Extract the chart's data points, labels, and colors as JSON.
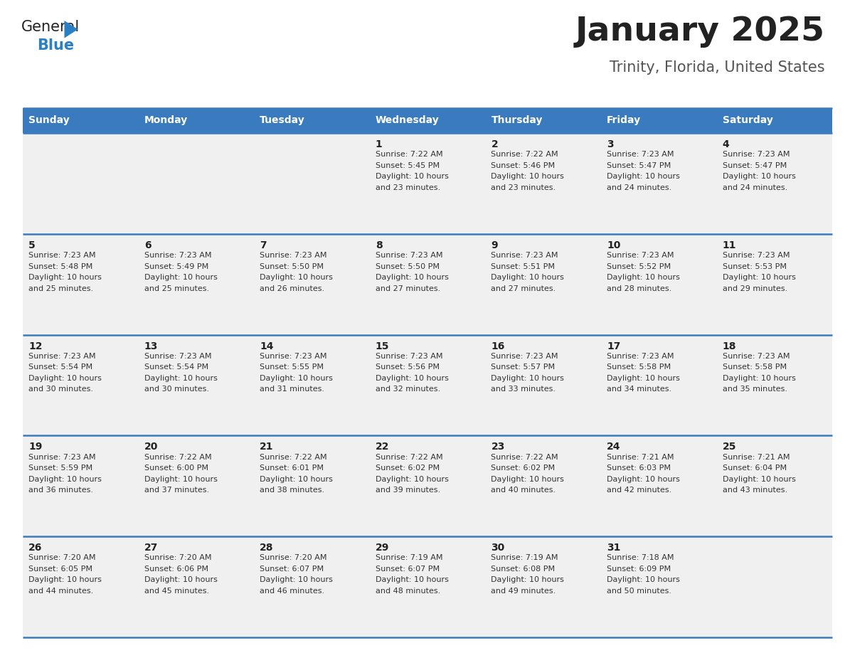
{
  "title": "January 2025",
  "subtitle": "Trinity, Florida, United States",
  "header_bg": "#3a7abf",
  "header_text_color": "#ffffff",
  "cell_bg": "#f0f0f0",
  "border_color": "#3a7abf",
  "day_headers": [
    "Sunday",
    "Monday",
    "Tuesday",
    "Wednesday",
    "Thursday",
    "Friday",
    "Saturday"
  ],
  "days": [
    {
      "day": 1,
      "col": 3,
      "row": 0,
      "sunrise": "7:22 AM",
      "sunset": "5:45 PM",
      "daylight": "10 hours and 23 minutes."
    },
    {
      "day": 2,
      "col": 4,
      "row": 0,
      "sunrise": "7:22 AM",
      "sunset": "5:46 PM",
      "daylight": "10 hours and 23 minutes."
    },
    {
      "day": 3,
      "col": 5,
      "row": 0,
      "sunrise": "7:23 AM",
      "sunset": "5:47 PM",
      "daylight": "10 hours and 24 minutes."
    },
    {
      "day": 4,
      "col": 6,
      "row": 0,
      "sunrise": "7:23 AM",
      "sunset": "5:47 PM",
      "daylight": "10 hours and 24 minutes."
    },
    {
      "day": 5,
      "col": 0,
      "row": 1,
      "sunrise": "7:23 AM",
      "sunset": "5:48 PM",
      "daylight": "10 hours and 25 minutes."
    },
    {
      "day": 6,
      "col": 1,
      "row": 1,
      "sunrise": "7:23 AM",
      "sunset": "5:49 PM",
      "daylight": "10 hours and 25 minutes."
    },
    {
      "day": 7,
      "col": 2,
      "row": 1,
      "sunrise": "7:23 AM",
      "sunset": "5:50 PM",
      "daylight": "10 hours and 26 minutes."
    },
    {
      "day": 8,
      "col": 3,
      "row": 1,
      "sunrise": "7:23 AM",
      "sunset": "5:50 PM",
      "daylight": "10 hours and 27 minutes."
    },
    {
      "day": 9,
      "col": 4,
      "row": 1,
      "sunrise": "7:23 AM",
      "sunset": "5:51 PM",
      "daylight": "10 hours and 27 minutes."
    },
    {
      "day": 10,
      "col": 5,
      "row": 1,
      "sunrise": "7:23 AM",
      "sunset": "5:52 PM",
      "daylight": "10 hours and 28 minutes."
    },
    {
      "day": 11,
      "col": 6,
      "row": 1,
      "sunrise": "7:23 AM",
      "sunset": "5:53 PM",
      "daylight": "10 hours and 29 minutes."
    },
    {
      "day": 12,
      "col": 0,
      "row": 2,
      "sunrise": "7:23 AM",
      "sunset": "5:54 PM",
      "daylight": "10 hours and 30 minutes."
    },
    {
      "day": 13,
      "col": 1,
      "row": 2,
      "sunrise": "7:23 AM",
      "sunset": "5:54 PM",
      "daylight": "10 hours and 30 minutes."
    },
    {
      "day": 14,
      "col": 2,
      "row": 2,
      "sunrise": "7:23 AM",
      "sunset": "5:55 PM",
      "daylight": "10 hours and 31 minutes."
    },
    {
      "day": 15,
      "col": 3,
      "row": 2,
      "sunrise": "7:23 AM",
      "sunset": "5:56 PM",
      "daylight": "10 hours and 32 minutes."
    },
    {
      "day": 16,
      "col": 4,
      "row": 2,
      "sunrise": "7:23 AM",
      "sunset": "5:57 PM",
      "daylight": "10 hours and 33 minutes."
    },
    {
      "day": 17,
      "col": 5,
      "row": 2,
      "sunrise": "7:23 AM",
      "sunset": "5:58 PM",
      "daylight": "10 hours and 34 minutes."
    },
    {
      "day": 18,
      "col": 6,
      "row": 2,
      "sunrise": "7:23 AM",
      "sunset": "5:58 PM",
      "daylight": "10 hours and 35 minutes."
    },
    {
      "day": 19,
      "col": 0,
      "row": 3,
      "sunrise": "7:23 AM",
      "sunset": "5:59 PM",
      "daylight": "10 hours and 36 minutes."
    },
    {
      "day": 20,
      "col": 1,
      "row": 3,
      "sunrise": "7:22 AM",
      "sunset": "6:00 PM",
      "daylight": "10 hours and 37 minutes."
    },
    {
      "day": 21,
      "col": 2,
      "row": 3,
      "sunrise": "7:22 AM",
      "sunset": "6:01 PM",
      "daylight": "10 hours and 38 minutes."
    },
    {
      "day": 22,
      "col": 3,
      "row": 3,
      "sunrise": "7:22 AM",
      "sunset": "6:02 PM",
      "daylight": "10 hours and 39 minutes."
    },
    {
      "day": 23,
      "col": 4,
      "row": 3,
      "sunrise": "7:22 AM",
      "sunset": "6:02 PM",
      "daylight": "10 hours and 40 minutes."
    },
    {
      "day": 24,
      "col": 5,
      "row": 3,
      "sunrise": "7:21 AM",
      "sunset": "6:03 PM",
      "daylight": "10 hours and 42 minutes."
    },
    {
      "day": 25,
      "col": 6,
      "row": 3,
      "sunrise": "7:21 AM",
      "sunset": "6:04 PM",
      "daylight": "10 hours and 43 minutes."
    },
    {
      "day": 26,
      "col": 0,
      "row": 4,
      "sunrise": "7:20 AM",
      "sunset": "6:05 PM",
      "daylight": "10 hours and 44 minutes."
    },
    {
      "day": 27,
      "col": 1,
      "row": 4,
      "sunrise": "7:20 AM",
      "sunset": "6:06 PM",
      "daylight": "10 hours and 45 minutes."
    },
    {
      "day": 28,
      "col": 2,
      "row": 4,
      "sunrise": "7:20 AM",
      "sunset": "6:07 PM",
      "daylight": "10 hours and 46 minutes."
    },
    {
      "day": 29,
      "col": 3,
      "row": 4,
      "sunrise": "7:19 AM",
      "sunset": "6:07 PM",
      "daylight": "10 hours and 48 minutes."
    },
    {
      "day": 30,
      "col": 4,
      "row": 4,
      "sunrise": "7:19 AM",
      "sunset": "6:08 PM",
      "daylight": "10 hours and 49 minutes."
    },
    {
      "day": 31,
      "col": 5,
      "row": 4,
      "sunrise": "7:18 AM",
      "sunset": "6:09 PM",
      "daylight": "10 hours and 50 minutes."
    }
  ],
  "num_rows": 5,
  "num_cols": 7,
  "logo_color_general": "#222222",
  "logo_color_blue": "#2b7fc3",
  "logo_triangle_color": "#2b7fc3",
  "title_fontsize": 34,
  "subtitle_fontsize": 15,
  "header_fontsize": 10,
  "day_num_fontsize": 10,
  "cell_text_fontsize": 8
}
